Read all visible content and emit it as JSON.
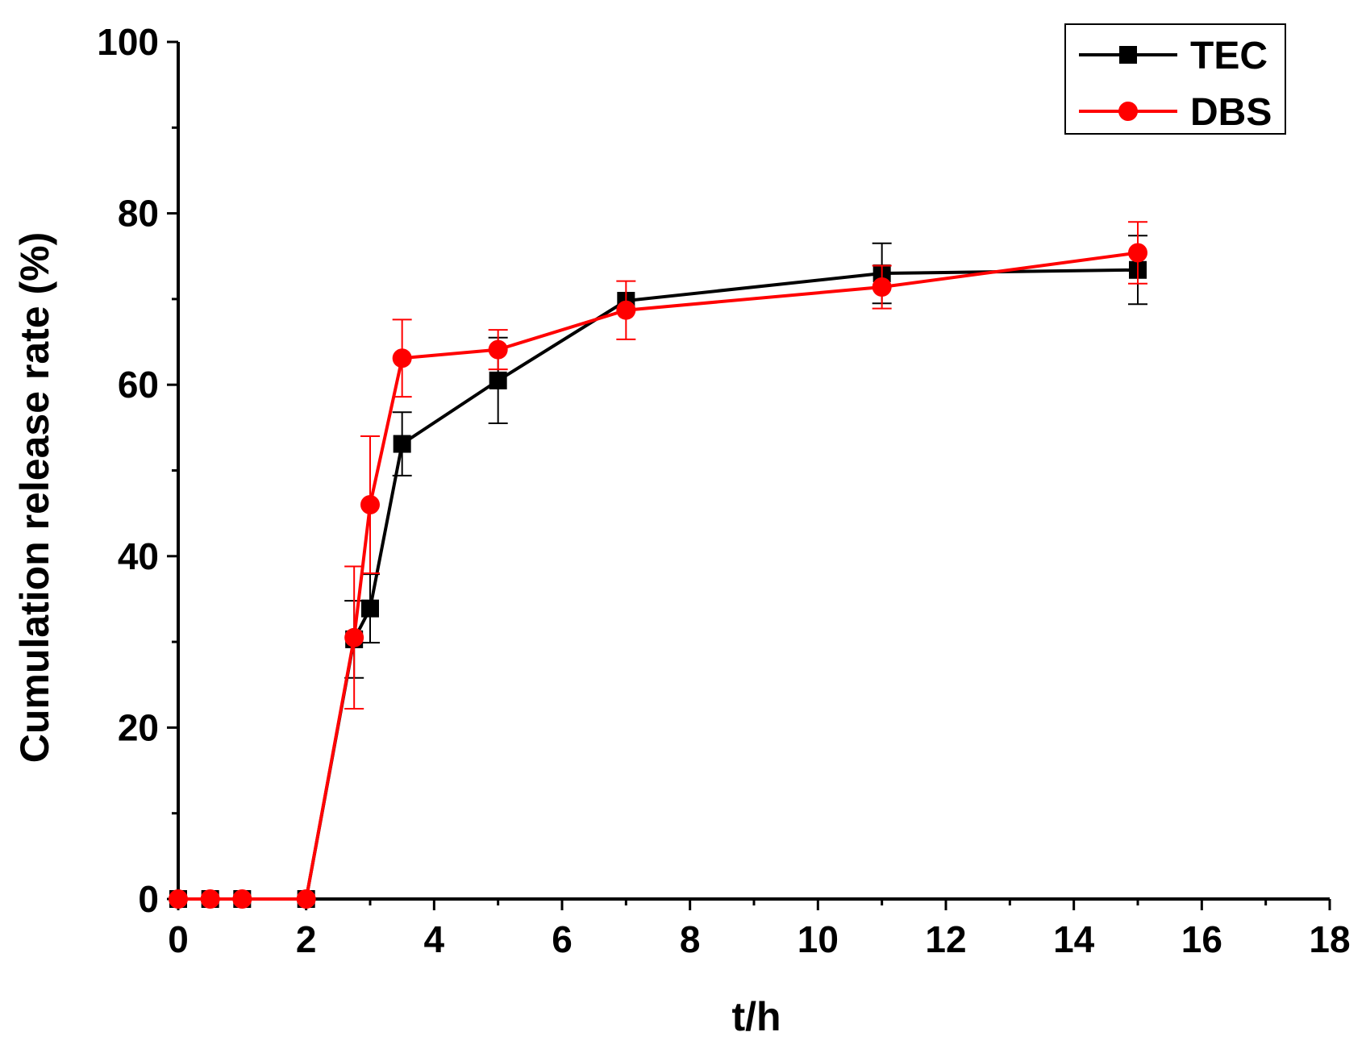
{
  "chart_data": {
    "type": "line",
    "xlabel": "t/h",
    "ylabel": "Cumulation release rate (%)",
    "xlim": [
      0,
      18
    ],
    "ylim": [
      0,
      100
    ],
    "x_ticks": [
      "0",
      "2",
      "4",
      "6",
      "8",
      "10",
      "12",
      "14",
      "16",
      "18"
    ],
    "y_ticks": [
      "0",
      "20",
      "40",
      "60",
      "80",
      "100"
    ],
    "legend_position": "top-right",
    "grid": false,
    "series": [
      {
        "name": "TEC",
        "color": "#000000",
        "marker": "square",
        "x": [
          0,
          0.5,
          1,
          2,
          2.75,
          3,
          3.5,
          5,
          7,
          11,
          15
        ],
        "y": [
          0,
          0,
          0,
          0,
          30.3,
          33.9,
          53.1,
          60.5,
          69.8,
          73.0,
          73.4
        ],
        "error": [
          0,
          0,
          0,
          0,
          4.5,
          4.0,
          3.7,
          5.0,
          0,
          3.5,
          4.0
        ]
      },
      {
        "name": "DBS",
        "color": "#ff0000",
        "marker": "circle",
        "x": [
          0,
          0.5,
          1,
          2,
          2.75,
          3,
          3.5,
          5,
          7,
          11,
          15
        ],
        "y": [
          0,
          0,
          0,
          0,
          30.5,
          46.0,
          63.1,
          64.1,
          68.7,
          71.4,
          75.4
        ],
        "error": [
          0,
          0,
          0,
          0,
          8.3,
          8.0,
          4.5,
          2.3,
          3.4,
          2.5,
          3.6
        ]
      }
    ]
  }
}
